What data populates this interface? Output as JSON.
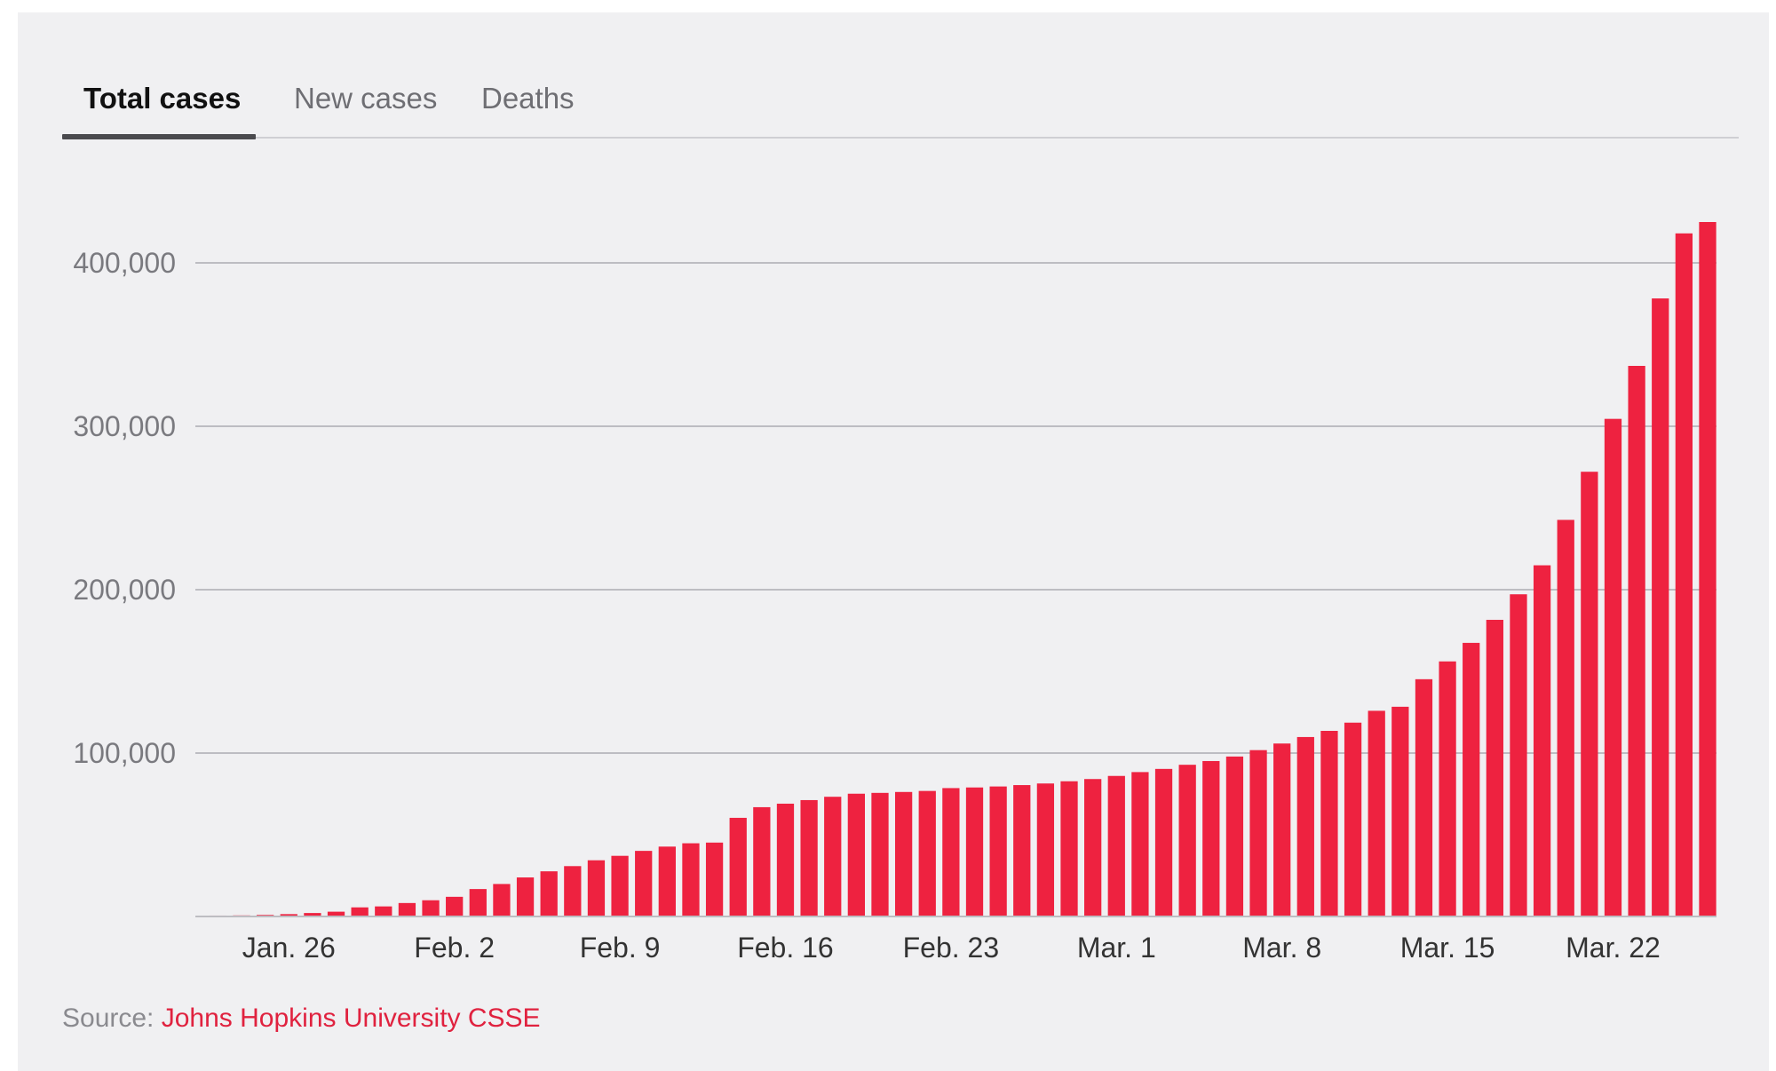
{
  "tabs": [
    {
      "label": "Total cases",
      "active": true
    },
    {
      "label": "New cases",
      "active": false
    },
    {
      "label": "Deaths",
      "active": false
    }
  ],
  "source": {
    "prefix": "Source:",
    "link_text": "Johns Hopkins University CSSE"
  },
  "colors": {
    "bar": "#ee2240",
    "grid": "#bdbdc2",
    "tick_label": "#7a7a7f",
    "x_label": "#333333",
    "link": "#e0223f"
  },
  "chart_data": {
    "type": "bar",
    "title": "",
    "xlabel": "",
    "ylabel": "",
    "ylim": [
      0,
      430000
    ],
    "y_ticks": [
      {
        "value": 100000,
        "label": "100,000"
      },
      {
        "value": 200000,
        "label": "200,000"
      },
      {
        "value": 300000,
        "label": "300,000"
      },
      {
        "value": 400000,
        "label": "400,000"
      }
    ],
    "x_ticks": [
      {
        "index": 3,
        "label": "Jan. 26"
      },
      {
        "index": 10,
        "label": "Feb. 2"
      },
      {
        "index": 17,
        "label": "Feb. 9"
      },
      {
        "index": 24,
        "label": "Feb. 16"
      },
      {
        "index": 31,
        "label": "Feb. 23"
      },
      {
        "index": 38,
        "label": "Mar. 1"
      },
      {
        "index": 45,
        "label": "Mar. 8"
      },
      {
        "index": 52,
        "label": "Mar. 15"
      },
      {
        "index": 59,
        "label": "Mar. 22"
      }
    ],
    "grid": true,
    "categories": [
      "Jan. 22",
      "Jan. 23",
      "Jan. 24",
      "Jan. 25",
      "Jan. 26",
      "Jan. 27",
      "Jan. 28",
      "Jan. 29",
      "Jan. 30",
      "Jan. 31",
      "Feb. 1",
      "Feb. 2",
      "Feb. 3",
      "Feb. 4",
      "Feb. 5",
      "Feb. 6",
      "Feb. 7",
      "Feb. 8",
      "Feb. 9",
      "Feb. 10",
      "Feb. 11",
      "Feb. 12",
      "Feb. 13",
      "Feb. 14",
      "Feb. 15",
      "Feb. 16",
      "Feb. 17",
      "Feb. 18",
      "Feb. 19",
      "Feb. 20",
      "Feb. 21",
      "Feb. 22",
      "Feb. 23",
      "Feb. 24",
      "Feb. 25",
      "Feb. 26",
      "Feb. 27",
      "Feb. 28",
      "Feb. 29",
      "Mar. 1",
      "Mar. 2",
      "Mar. 3",
      "Mar. 4",
      "Mar. 5",
      "Mar. 6",
      "Mar. 7",
      "Mar. 8",
      "Mar. 9",
      "Mar. 10",
      "Mar. 11",
      "Mar. 12",
      "Mar. 13",
      "Mar. 14",
      "Mar. 15",
      "Mar. 16",
      "Mar. 17",
      "Mar. 18",
      "Mar. 19",
      "Mar. 20",
      "Mar. 21",
      "Mar. 22",
      "Mar. 23",
      "Mar. 24",
      "Mar. 25"
    ],
    "values": [
      555,
      654,
      941,
      1434,
      2118,
      2927,
      5578,
      6166,
      8234,
      9927,
      12038,
      16787,
      19881,
      23892,
      27635,
      30817,
      34391,
      37120,
      40150,
      42762,
      44802,
      45221,
      60368,
      66885,
      69030,
      71224,
      73258,
      75136,
      75639,
      76197,
      76819,
      78572,
      78958,
      79561,
      80406,
      81388,
      82746,
      84112,
      86011,
      88369,
      90306,
      92840,
      95120,
      97886,
      101801,
      105847,
      109821,
      113590,
      118620,
      125875,
      128343,
      145193,
      156099,
      167447,
      181546,
      197168,
      214915,
      242713,
      272167,
      304528,
      336953,
      378235,
      418045,
      425000
    ]
  }
}
